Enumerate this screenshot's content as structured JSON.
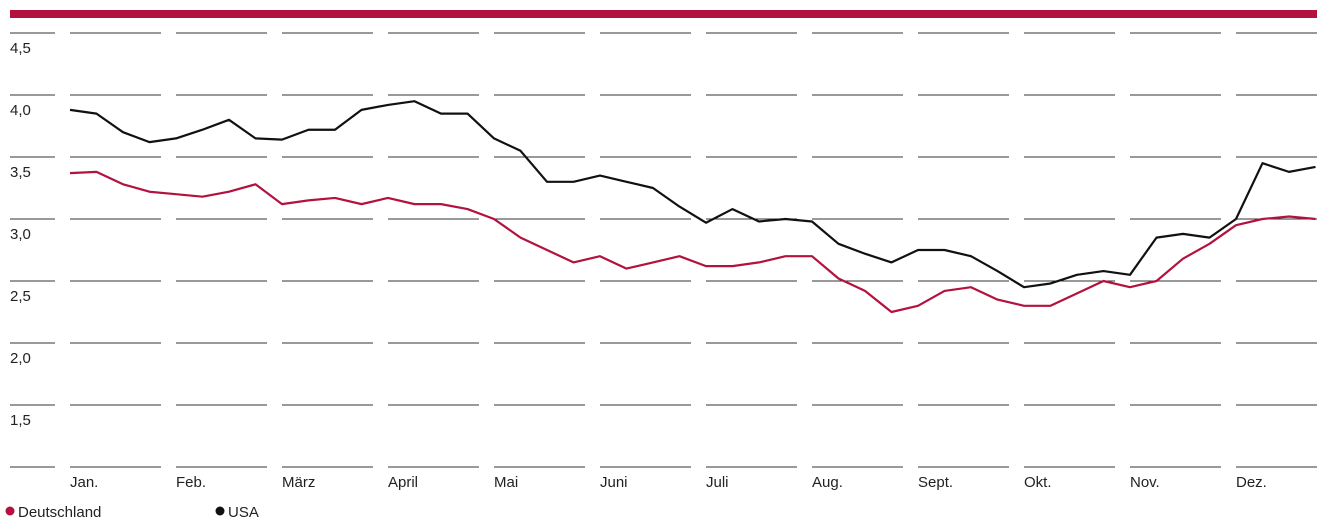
{
  "chart_data": {
    "type": "line",
    "categories": [
      "Jan.",
      null,
      null,
      null,
      "Feb.",
      null,
      null,
      null,
      "März",
      null,
      null,
      null,
      "April",
      null,
      null,
      null,
      "Mai",
      null,
      null,
      null,
      "Juni",
      null,
      null,
      null,
      "Juli",
      null,
      null,
      null,
      "Aug.",
      null,
      null,
      null,
      "Sept.",
      null,
      null,
      null,
      "Okt.",
      null,
      null,
      null,
      "Nov.",
      null,
      null,
      null,
      "Dez.",
      null,
      null,
      null
    ],
    "series": [
      {
        "name": "Deutschland",
        "color": "#b3123f",
        "values": [
          3.37,
          3.38,
          3.28,
          3.22,
          3.2,
          3.18,
          3.22,
          3.28,
          3.12,
          3.15,
          3.17,
          3.12,
          3.17,
          3.12,
          3.12,
          3.08,
          3.0,
          2.85,
          2.75,
          2.65,
          2.7,
          2.6,
          2.65,
          2.7,
          2.62,
          2.62,
          2.65,
          2.7,
          2.7,
          2.52,
          2.42,
          2.25,
          2.3,
          2.42,
          2.45,
          2.35,
          2.3,
          2.3,
          2.4,
          2.5,
          2.45,
          2.5,
          2.68,
          2.8,
          2.95,
          3.0,
          3.02,
          3.0
        ]
      },
      {
        "name": "USA",
        "color": "#111111",
        "values": [
          3.88,
          3.85,
          3.7,
          3.62,
          3.65,
          3.72,
          3.8,
          3.65,
          3.64,
          3.72,
          3.72,
          3.88,
          3.92,
          3.95,
          3.85,
          3.85,
          3.65,
          3.55,
          3.3,
          3.3,
          3.35,
          3.3,
          3.25,
          3.1,
          2.97,
          3.08,
          2.98,
          3.0,
          2.98,
          2.8,
          2.72,
          2.65,
          2.75,
          2.75,
          2.7,
          2.58,
          2.45,
          2.48,
          2.55,
          2.58,
          2.55,
          2.85,
          2.88,
          2.85,
          3.0,
          3.45,
          3.38,
          3.42
        ]
      }
    ],
    "ylim": [
      1.0,
      4.5
    ],
    "yticks": [
      {
        "value": 1.5,
        "label": "1,5"
      },
      {
        "value": 2.0,
        "label": "2,0"
      },
      {
        "value": 2.5,
        "label": "2,5"
      },
      {
        "value": 3.0,
        "label": "3,0"
      },
      {
        "value": 3.5,
        "label": "3,5"
      },
      {
        "value": 4.0,
        "label": "4,0"
      },
      {
        "value": 4.5,
        "label": "4,5"
      }
    ],
    "grid": true
  }
}
